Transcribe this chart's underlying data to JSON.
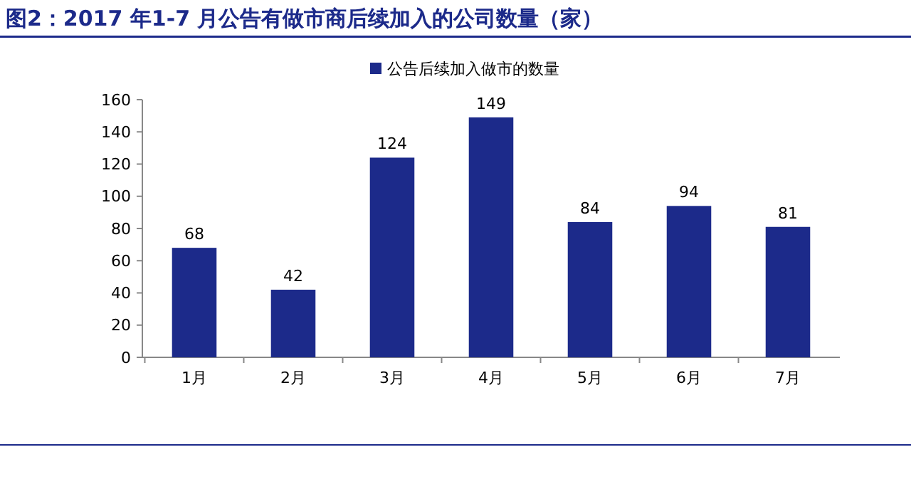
{
  "chart_data": {
    "type": "bar",
    "title": "图2：2017 年1-7 月公告有做市商后续加入的公司数量（家）",
    "categories": [
      "1月",
      "2月",
      "3月",
      "4月",
      "5月",
      "6月",
      "7月"
    ],
    "series": [
      {
        "name": "公告后续加入做市的数量",
        "color": "#1c2a8a",
        "values": [
          68,
          42,
          124,
          149,
          84,
          94,
          81
        ]
      }
    ],
    "ylim": [
      0,
      160
    ],
    "yticks": [
      0,
      20,
      40,
      60,
      80,
      100,
      120,
      140,
      160
    ],
    "grid": false,
    "legend": "top",
    "data_labels": true
  }
}
